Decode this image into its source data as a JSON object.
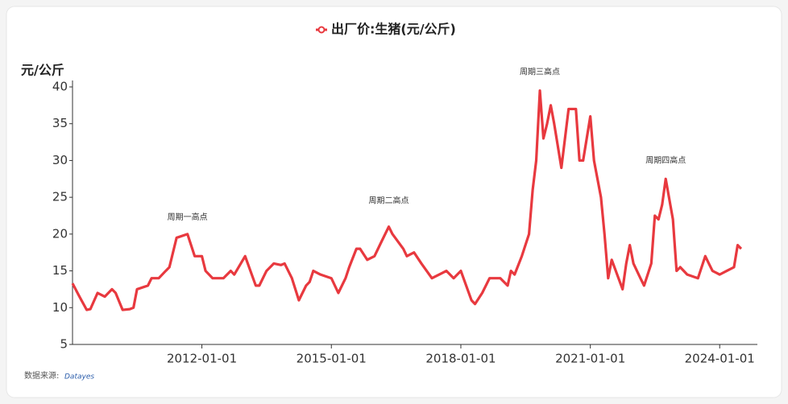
{
  "chart_data": {
    "type": "line",
    "legend_label": "出厂价:生猪(元/公斤)",
    "y_label": "元/公斤",
    "source_label": "数据来源:",
    "source_brand": "Datayes",
    "series": [
      {
        "name": "出厂价:生猪(元/公斤)",
        "color": "#e8393f",
        "x": [
          "2009-01-01",
          "2009-03-01",
          "2009-05-01",
          "2009-06-01",
          "2009-08-01",
          "2009-10-01",
          "2009-12-01",
          "2010-01-01",
          "2010-03-01",
          "2010-05-01",
          "2010-06-01",
          "2010-07-01",
          "2010-10-01",
          "2010-11-01",
          "2011-01-01",
          "2011-03-01",
          "2011-04-01",
          "2011-06-01",
          "2011-09-01",
          "2011-11-01",
          "2012-01-01",
          "2012-02-01",
          "2012-04-01",
          "2012-07-01",
          "2012-09-01",
          "2012-10-01",
          "2013-01-01",
          "2013-04-01",
          "2013-05-01",
          "2013-07-01",
          "2013-09-01",
          "2013-11-01",
          "2013-12-01",
          "2014-02-01",
          "2014-04-01",
          "2014-06-01",
          "2014-07-01",
          "2014-08-01",
          "2014-10-01",
          "2015-01-01",
          "2015-03-01",
          "2015-05-01",
          "2015-06-01",
          "2015-08-01",
          "2015-09-01",
          "2015-11-01",
          "2016-01-01",
          "2016-03-01",
          "2016-05-01",
          "2016-06-01",
          "2016-09-01",
          "2016-10-01",
          "2016-12-01",
          "2017-02-01",
          "2017-05-01",
          "2017-07-01",
          "2017-09-01",
          "2017-11-01",
          "2018-01-01",
          "2018-04-01",
          "2018-05-01",
          "2018-07-01",
          "2018-09-01",
          "2018-12-01",
          "2019-02-01",
          "2019-03-01",
          "2019-04-01",
          "2019-06-01",
          "2019-08-01",
          "2019-09-01",
          "2019-10-01",
          "2019-11-01",
          "2019-12-01",
          "2020-01-01",
          "2020-02-01",
          "2020-03-01",
          "2020-05-01",
          "2020-07-01",
          "2020-09-01",
          "2020-10-01",
          "2020-11-01",
          "2021-01-01",
          "2021-02-01",
          "2021-04-01",
          "2021-05-01",
          "2021-06-01",
          "2021-07-01",
          "2021-10-01",
          "2021-11-01",
          "2021-12-01",
          "2022-01-01",
          "2022-03-01",
          "2022-04-01",
          "2022-06-01",
          "2022-07-01",
          "2022-08-01",
          "2022-09-01",
          "2022-10-01",
          "2022-12-01",
          "2023-01-01",
          "2023-02-01",
          "2023-04-01",
          "2023-07-01",
          "2023-09-01",
          "2023-10-01",
          "2023-11-01",
          "2024-01-01",
          "2024-03-01",
          "2024-05-01",
          "2024-06-01",
          "2024-07-01"
        ],
        "values": [
          13.3,
          11.5,
          9.7,
          9.8,
          12,
          11.5,
          12.5,
          12,
          9.7,
          9.8,
          10,
          12.5,
          13,
          14,
          14,
          15,
          15.5,
          19.5,
          20,
          17,
          17,
          15,
          14,
          14,
          15,
          14.5,
          17,
          13,
          13,
          15,
          16,
          15.8,
          16,
          14,
          11,
          13,
          13.5,
          15,
          14.5,
          14,
          12,
          14,
          15.5,
          18,
          18,
          16.5,
          17,
          19,
          21,
          20,
          18,
          17,
          17.5,
          16,
          14,
          14.5,
          15,
          14,
          15,
          11,
          10.5,
          12,
          14,
          14,
          13,
          15,
          14.5,
          17,
          20,
          26,
          30,
          39.5,
          33,
          35,
          37.5,
          35,
          29,
          37,
          37,
          30,
          30,
          36,
          30,
          25,
          20,
          14,
          16.5,
          12.5,
          16,
          18.5,
          16,
          14,
          13,
          16,
          22.5,
          22,
          24,
          27.5,
          22,
          15,
          15.5,
          14.5,
          14,
          17,
          16,
          15,
          14.5,
          15,
          15.5,
          18.5,
          18
        ]
      }
    ],
    "annotations": [
      {
        "text": "周期一高点",
        "x": "2011-09-01",
        "y": 22.3
      },
      {
        "text": "周期二高点",
        "x": "2016-05-01",
        "y": 24.5
      },
      {
        "text": "周期三高点",
        "x": "2019-11-01",
        "y": 42
      },
      {
        "text": "周期四高点",
        "x": "2022-10-01",
        "y": 30
      }
    ],
    "xlim": [
      "2009-01-01",
      "2024-11-15"
    ],
    "xticks": [
      "2012-01-01",
      "2015-01-01",
      "2018-01-01",
      "2021-01-01",
      "2024-01-01"
    ],
    "ylim": [
      5,
      40
    ],
    "yticks": [
      5,
      10,
      15,
      20,
      25,
      30,
      35,
      40
    ]
  }
}
